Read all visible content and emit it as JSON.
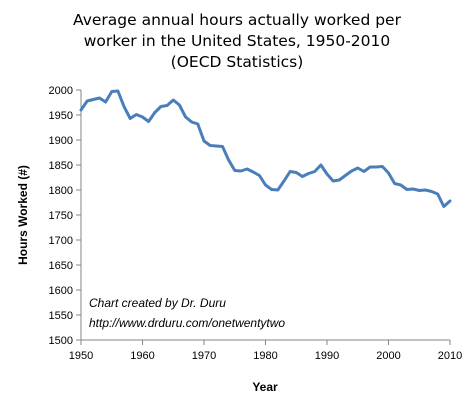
{
  "chart_data": {
    "type": "line",
    "title": "Average annual hours actually worked per worker in the United States, 1950-2010 (OECD Statistics)",
    "title_lines": [
      "Average annual hours actually worked per",
      "worker in the United States, 1950-2010",
      "(OECD Statistics)"
    ],
    "xlabel": "Year",
    "ylabel": "Hours Worked (#)",
    "xlim": [
      1950,
      2010
    ],
    "ylim": [
      1500,
      2000
    ],
    "xticks": [
      1950,
      1960,
      1970,
      1980,
      1990,
      2000,
      2010
    ],
    "yticks": [
      1500,
      1550,
      1600,
      1650,
      1700,
      1750,
      1800,
      1850,
      1900,
      1950,
      2000
    ],
    "grid": false,
    "line_color": "#4a7ebb",
    "annotations": [
      "Chart created by Dr. Duru",
      "http://www.drduru.com/onetwentytwo"
    ],
    "series": [
      {
        "x": [
          1950,
          1951,
          1952,
          1953,
          1954,
          1955,
          1956,
          1957,
          1958,
          1959,
          1960,
          1961,
          1962,
          1963,
          1964,
          1965,
          1966,
          1967,
          1968,
          1969,
          1970,
          1971,
          1972,
          1973,
          1974,
          1975,
          1976,
          1977,
          1978,
          1979,
          1980,
          1981,
          1982,
          1983,
          1984,
          1985,
          1986,
          1987,
          1988,
          1989,
          1990,
          1991,
          1992,
          1993,
          1994,
          1995,
          1996,
          1997,
          1998,
          1999,
          2000,
          2001,
          2002,
          2003,
          2004,
          2005,
          2006,
          2007,
          2008,
          2009,
          2010
        ],
        "values": [
          1960,
          1978,
          1981,
          1984,
          1976,
          1997,
          1998,
          1967,
          1943,
          1951,
          1946,
          1937,
          1955,
          1967,
          1969,
          1980,
          1970,
          1946,
          1936,
          1932,
          1898,
          1889,
          1888,
          1887,
          1860,
          1839,
          1838,
          1842,
          1836,
          1829,
          1810,
          1801,
          1800,
          1818,
          1837,
          1835,
          1827,
          1833,
          1837,
          1850,
          1832,
          1818,
          1820,
          1829,
          1838,
          1844,
          1837,
          1846,
          1846,
          1847,
          1834,
          1813,
          1810,
          1801,
          1802,
          1799,
          1800,
          1797,
          1792,
          1767,
          1778
        ]
      }
    ]
  }
}
